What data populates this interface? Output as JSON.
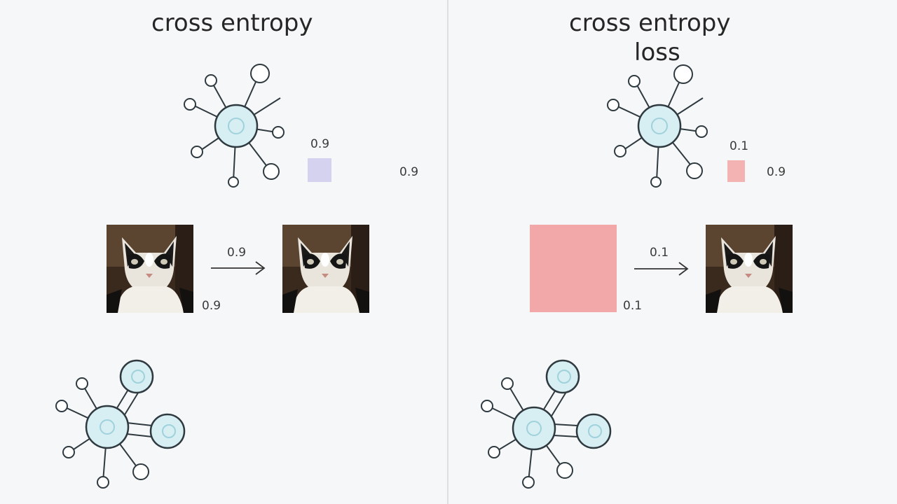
{
  "left": {
    "title": "cross entropy",
    "top_node_value": "0.9",
    "right_value": "0.9",
    "arrow_value": "0.9",
    "image_value": "0.9",
    "swatch_color": "#d4d2ee"
  },
  "right": {
    "title_line1": "cross entropy",
    "title_line2": "loss",
    "top_node_value": "0.1",
    "right_value": "0.9",
    "arrow_value": "0.1",
    "image_value": "0.1",
    "small_swatch_color": "#f3b3b3",
    "big_swatch_color": "#f2a8a8"
  },
  "colors": {
    "node_fill": "#d7eef2",
    "node_stroke": "#2f3a40",
    "small_node_fill": "#ffffff"
  },
  "icons": {
    "network": "network-graph-icon",
    "cat": "cat-photo",
    "arrow": "right-arrow-icon"
  }
}
